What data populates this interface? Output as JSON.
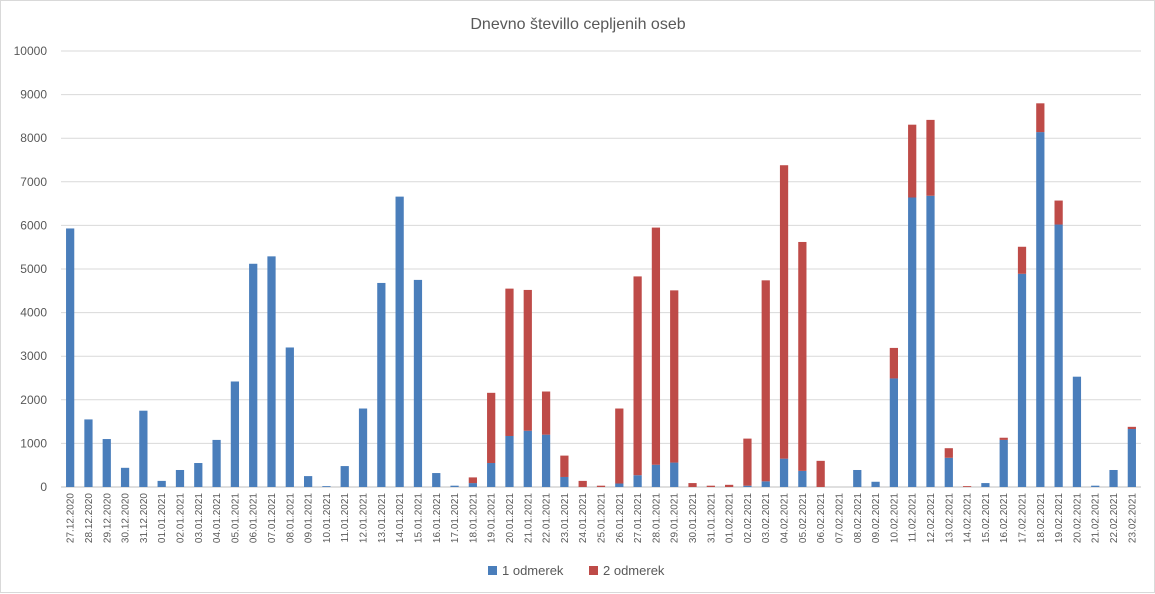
{
  "chart_data": {
    "type": "bar",
    "stacked": true,
    "title": "Dnevno števillo cepljenih oseb",
    "xlabel": "",
    "ylabel": "",
    "ylim": [
      0,
      10000
    ],
    "yticks": [
      0,
      1000,
      2000,
      3000,
      4000,
      5000,
      6000,
      7000,
      8000,
      9000,
      10000
    ],
    "grid": true,
    "legend_position": "bottom",
    "colors": {
      "1 odmerek": "#4a7ebb",
      "2 odmerek": "#be4b48"
    },
    "categories": [
      "27.12.2020",
      "28.12.2020",
      "29.12.2020",
      "30.12.2020",
      "31.12.2020",
      "01.01.2021",
      "02.01.2021",
      "03.01.2021",
      "04.01.2021",
      "05.01.2021",
      "06.01.2021",
      "07.01.2021",
      "08.01.2021",
      "09.01.2021",
      "10.01.2021",
      "11.01.2021",
      "12.01.2021",
      "13.01.2021",
      "14.01.2021",
      "15.01.2021",
      "16.01.2021",
      "17.01.2021",
      "18.01.2021",
      "19.01.2021",
      "20.01.2021",
      "21.01.2021",
      "22.01.2021",
      "23.01.2021",
      "24.01.2021",
      "25.01.2021",
      "26.01.2021",
      "27.01.2021",
      "28.01.2021",
      "29.01.2021",
      "30.01.2021",
      "31.01.2021",
      "01.02.2021",
      "02.02.2021",
      "03.02.2021",
      "04.02.2021",
      "05.02.2021",
      "06.02.2021",
      "07.02.2021",
      "08.02.2021",
      "09.02.2021",
      "10.02.2021",
      "11.02.2021",
      "12.02.2021",
      "13.02.2021",
      "14.02.2021",
      "15.02.2021",
      "16.02.2021",
      "17.02.2021",
      "18.02.2021",
      "19.02.2021",
      "20.02.2021",
      "21.02.2021",
      "22.02.2021",
      "23.02.2021"
    ],
    "series": [
      {
        "name": "1 odmerek",
        "values": [
          5930,
          1550,
          1100,
          440,
          1750,
          140,
          390,
          550,
          1080,
          2420,
          5120,
          5290,
          3200,
          250,
          20,
          480,
          1800,
          4680,
          6660,
          4750,
          320,
          30,
          90,
          550,
          1170,
          1290,
          1200,
          230,
          0,
          0,
          80,
          270,
          510,
          560,
          0,
          0,
          0,
          30,
          130,
          650,
          370,
          0,
          0,
          390,
          120,
          2490,
          6640,
          6680,
          670,
          0,
          90,
          1080,
          4890,
          8140,
          6020,
          2530,
          30,
          390,
          1330
        ]
      },
      {
        "name": "2 odmerek",
        "values": [
          0,
          0,
          0,
          0,
          0,
          0,
          0,
          0,
          0,
          0,
          0,
          0,
          0,
          0,
          0,
          0,
          0,
          0,
          0,
          0,
          0,
          0,
          130,
          1610,
          3380,
          3230,
          990,
          490,
          140,
          30,
          1720,
          4560,
          5440,
          3950,
          90,
          30,
          50,
          1080,
          4610,
          6730,
          5250,
          600,
          0,
          0,
          0,
          700,
          1670,
          1740,
          220,
          20,
          0,
          50,
          620,
          660,
          550,
          0,
          0,
          0,
          50
        ]
      }
    ]
  }
}
